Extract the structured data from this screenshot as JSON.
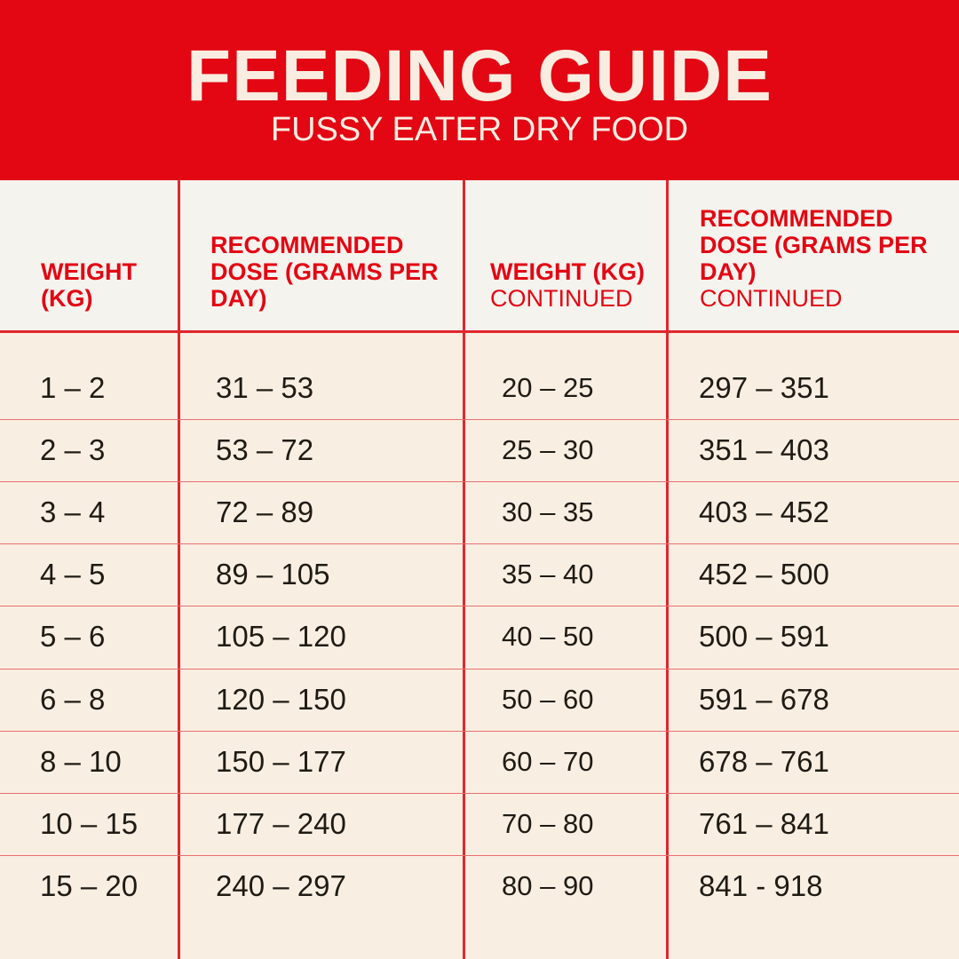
{
  "header": {
    "title": "FEEDING GUIDE",
    "subtitle": "FUSSY EATER DRY FOOD"
  },
  "table": {
    "columns": [
      {
        "label": "WEIGHT (KG)"
      },
      {
        "label": "RECOMMENDED DOSE (GRAMS PER DAY)"
      },
      {
        "label": "WEIGHT (KG)",
        "note": "CONTINUED"
      },
      {
        "label": "RECOMMENDED DOSE (GRAMS PER DAY)",
        "note": "CONTINUED"
      }
    ],
    "rows": [
      [
        "1 – 2",
        "31 – 53",
        "20 – 25",
        "297 – 351"
      ],
      [
        "2 – 3",
        "53 – 72",
        "25 – 30",
        "351 – 403"
      ],
      [
        "3 – 4",
        "72 – 89",
        "30 – 35",
        "403 – 452"
      ],
      [
        "4 – 5",
        "89 – 105",
        "35 – 40",
        "452 – 500"
      ],
      [
        "5 – 6",
        "105 – 120",
        "40 – 50",
        "500 – 591"
      ],
      [
        "6 – 8",
        "120 – 150",
        "50 – 60",
        "591 – 678"
      ],
      [
        "8 – 10",
        "150 – 177",
        "60 – 70",
        "678 – 761"
      ],
      [
        "10 – 15",
        "177 – 240",
        "70 – 80",
        "761 – 841"
      ],
      [
        "15 – 20",
        "240 – 297",
        "80 – 90",
        "841 - 918"
      ]
    ]
  }
}
